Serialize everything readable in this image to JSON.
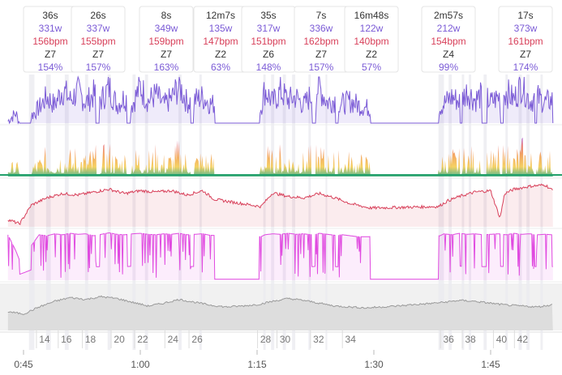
{
  "colors": {
    "power": "#7b5bd6",
    "hr": "#d8405a",
    "cadence": "#e04ae0",
    "altitude": "#9a9a9a",
    "zone_band_low": "#22a06b",
    "zone_band_mid": "#f2c230",
    "zone_band_high": "#e05050"
  },
  "chart_data": {
    "type": "line",
    "x_axis": {
      "ticks": [
        "0:45",
        "1:00",
        "1:15",
        "1:30",
        "1:45"
      ],
      "range_minutes": [
        43,
        113
      ]
    },
    "interval_cards": [
      {
        "duration": "36s",
        "power": "331w",
        "hr": "156bpm",
        "zone": "Z7",
        "percent": "154%",
        "t": 56.0
      },
      {
        "duration": "26s",
        "power": "337w",
        "hr": "155bpm",
        "zone": "Z7",
        "percent": "157%",
        "t": 61.2
      },
      {
        "duration": "8s",
        "power": "349w",
        "hr": "159bpm",
        "zone": "Z7",
        "percent": "163%",
        "t": 68.5
      },
      {
        "duration": "12m7s",
        "power": "135w",
        "hr": "147bpm",
        "zone": "Z2",
        "percent": "63%",
        "t": 73.2
      },
      {
        "duration": "35s",
        "power": "317w",
        "hr": "151bpm",
        "zone": "Z6",
        "percent": "148%",
        "t": 77.6
      },
      {
        "duration": "7s",
        "power": "336w",
        "hr": "162bpm",
        "zone": "Z7",
        "percent": "157%",
        "t": 82.8
      },
      {
        "duration": "16m48s",
        "power": "122w",
        "hr": "140bpm",
        "zone": "Z2",
        "percent": "57%",
        "t": 87.4
      },
      {
        "duration": "2m57s",
        "power": "212w",
        "hr": "154bpm",
        "zone": "Z4",
        "percent": "99%",
        "t": 98.6
      },
      {
        "duration": "17s",
        "power": "373w",
        "hr": "161bpm",
        "zone": "Z7",
        "percent": "174%",
        "t": 108.5
      }
    ],
    "lap_markers": [
      {
        "label": "14",
        "t": 47.7
      },
      {
        "label": "16",
        "t": 50.5
      },
      {
        "label": "18",
        "t": 53.6
      },
      {
        "label": "20",
        "t": 57.3
      },
      {
        "label": "22",
        "t": 60.3
      },
      {
        "label": "24",
        "t": 64.2
      },
      {
        "label": "26",
        "t": 67.3
      },
      {
        "label": "28",
        "t": 76.1
      },
      {
        "label": "30",
        "t": 78.6
      },
      {
        "label": "32",
        "t": 82.9
      },
      {
        "label": "34",
        "t": 87.0
      },
      {
        "label": "36",
        "t": 99.6
      },
      {
        "label": "38",
        "t": 102.4
      },
      {
        "label": "40",
        "t": 106.4
      },
      {
        "label": "42",
        "t": 109.1
      }
    ],
    "active_segments": [
      [
        43.0,
        44.5
      ],
      [
        46.0,
        54.3
      ],
      [
        54.8,
        58.3
      ],
      [
        58.8,
        66.5
      ],
      [
        66.9,
        69.5
      ],
      [
        75.3,
        82.0
      ],
      [
        82.5,
        85.0
      ],
      [
        85.4,
        89.5
      ],
      [
        98.3,
        101.0
      ],
      [
        101.3,
        103.8
      ],
      [
        104.5,
        106.2
      ],
      [
        106.6,
        110.6
      ],
      [
        110.9,
        112.9
      ]
    ],
    "highlight_bands": [
      [
        45.7,
        46.4
      ],
      [
        47.9,
        48.5
      ],
      [
        50.3,
        50.8
      ],
      [
        52.9,
        53.3
      ],
      [
        55.8,
        56.2
      ],
      [
        59.0,
        59.4
      ],
      [
        60.6,
        61.0
      ],
      [
        64.9,
        65.3
      ],
      [
        67.6,
        67.9
      ],
      [
        75.8,
        76.1
      ],
      [
        76.8,
        77.2
      ],
      [
        78.3,
        78.7
      ],
      [
        79.5,
        79.9
      ],
      [
        81.6,
        81.9
      ],
      [
        83.8,
        84.0
      ],
      [
        98.3,
        99.0
      ],
      [
        99.6,
        100.0
      ],
      [
        101.3,
        101.6
      ],
      [
        102.2,
        102.5
      ],
      [
        104.1,
        104.5
      ],
      [
        106.9,
        107.2
      ],
      [
        108.6,
        109.0
      ],
      [
        109.6,
        110.0
      ],
      [
        111.4,
        111.7
      ]
    ],
    "series": [
      {
        "key": "power",
        "points": [
          [
            43.0,
            80
          ],
          [
            44.0,
            140
          ],
          [
            44.5,
            60
          ],
          [
            46.0,
            120
          ],
          [
            47.0,
            180
          ],
          [
            48.0,
            260
          ],
          [
            49.0,
            200
          ],
          [
            50.0,
            320
          ],
          [
            51.0,
            240
          ],
          [
            52.0,
            300
          ],
          [
            53.0,
            220
          ],
          [
            54.0,
            280
          ],
          [
            55.0,
            240
          ],
          [
            56.0,
            331
          ],
          [
            57.0,
            200
          ],
          [
            58.0,
            260
          ],
          [
            59.0,
            210
          ],
          [
            60.0,
            337
          ],
          [
            61.0,
            230
          ],
          [
            62.0,
            280
          ],
          [
            63.0,
            200
          ],
          [
            64.0,
            250
          ],
          [
            65.0,
            349
          ],
          [
            66.0,
            220
          ],
          [
            67.0,
            240
          ],
          [
            68.0,
            260
          ],
          [
            69.0,
            210
          ],
          [
            75.5,
            180
          ],
          [
            76.0,
            317
          ],
          [
            77.0,
            220
          ],
          [
            78.0,
            300
          ],
          [
            79.0,
            240
          ],
          [
            80.0,
            260
          ],
          [
            81.0,
            200
          ],
          [
            82.0,
            280
          ],
          [
            83.0,
            336
          ],
          [
            84.0,
            220
          ],
          [
            85.0,
            240
          ],
          [
            86.0,
            210
          ],
          [
            87.0,
            230
          ],
          [
            88.0,
            200
          ],
          [
            89.0,
            180
          ],
          [
            98.5,
            180
          ],
          [
            99.0,
            212
          ],
          [
            100.0,
            260
          ],
          [
            101.0,
            230
          ],
          [
            102.0,
            300
          ],
          [
            103.0,
            240
          ],
          [
            104.0,
            280
          ],
          [
            105.0,
            220
          ],
          [
            106.0,
            260
          ],
          [
            107.0,
            300
          ],
          [
            108.0,
            240
          ],
          [
            109.0,
            373
          ],
          [
            110.0,
            230
          ],
          [
            111.0,
            260
          ],
          [
            112.0,
            220
          ],
          [
            113.0,
            240
          ]
        ]
      },
      {
        "key": "hr",
        "points": [
          [
            43.0,
            110
          ],
          [
            44.5,
            104
          ],
          [
            46.0,
            130
          ],
          [
            48.0,
            140
          ],
          [
            50.0,
            146
          ],
          [
            52.0,
            144
          ],
          [
            54.0,
            148
          ],
          [
            56.0,
            152
          ],
          [
            58.0,
            146
          ],
          [
            60.0,
            150
          ],
          [
            62.0,
            148
          ],
          [
            64.0,
            150
          ],
          [
            66.0,
            144
          ],
          [
            68.0,
            150
          ],
          [
            69.5,
            138
          ],
          [
            75.5,
            128
          ],
          [
            77.0,
            147
          ],
          [
            79.0,
            142
          ],
          [
            81.0,
            140
          ],
          [
            83.0,
            146
          ],
          [
            85.0,
            140
          ],
          [
            87.0,
            132
          ],
          [
            89.5,
            126
          ],
          [
            98.3,
            128
          ],
          [
            99.5,
            136
          ],
          [
            101.0,
            142
          ],
          [
            103.0,
            148
          ],
          [
            105.0,
            150
          ],
          [
            106.2,
            112
          ],
          [
            106.8,
            146
          ],
          [
            108.0,
            152
          ],
          [
            110.0,
            156
          ],
          [
            112.0,
            158
          ],
          [
            113.0,
            150
          ]
        ]
      },
      {
        "key": "cadence",
        "points": [
          [
            43.0,
            92
          ],
          [
            44.0,
            60
          ],
          [
            44.5,
            40
          ],
          [
            46.0,
            70
          ],
          [
            47.0,
            92
          ],
          [
            48.0,
            90
          ],
          [
            49.0,
            94
          ],
          [
            50.0,
            92
          ],
          [
            51.0,
            95
          ],
          [
            52.0,
            93
          ],
          [
            53.0,
            94
          ],
          [
            54.0,
            90
          ],
          [
            55.0,
            93
          ],
          [
            56.0,
            96
          ],
          [
            57.0,
            93
          ],
          [
            58.0,
            92
          ],
          [
            59.0,
            94
          ],
          [
            60.0,
            95
          ],
          [
            61.0,
            93
          ],
          [
            62.0,
            92
          ],
          [
            63.0,
            94
          ],
          [
            64.0,
            93
          ],
          [
            65.0,
            95
          ],
          [
            66.0,
            92
          ],
          [
            67.0,
            93
          ],
          [
            68.0,
            94
          ],
          [
            69.0,
            91
          ],
          [
            75.5,
            88
          ],
          [
            76.0,
            92
          ],
          [
            77.0,
            94
          ],
          [
            78.0,
            93
          ],
          [
            79.0,
            95
          ],
          [
            80.0,
            93
          ],
          [
            81.0,
            94
          ],
          [
            82.0,
            92
          ],
          [
            83.0,
            95
          ],
          [
            84.0,
            93
          ],
          [
            85.0,
            91
          ],
          [
            86.0,
            92
          ],
          [
            87.0,
            90
          ],
          [
            88.0,
            88
          ],
          [
            98.5,
            90
          ],
          [
            99.0,
            94
          ],
          [
            100.0,
            92
          ],
          [
            101.0,
            95
          ],
          [
            102.0,
            93
          ],
          [
            103.0,
            94
          ],
          [
            104.0,
            92
          ],
          [
            105.0,
            93
          ],
          [
            106.0,
            94
          ],
          [
            107.0,
            92
          ],
          [
            108.0,
            95
          ],
          [
            109.0,
            93
          ],
          [
            110.0,
            94
          ],
          [
            111.0,
            92
          ],
          [
            112.0,
            93
          ],
          [
            113.0,
            92
          ]
        ]
      },
      {
        "key": "altitude",
        "points": [
          [
            43.0,
            40
          ],
          [
            45.0,
            35
          ],
          [
            47.0,
            50
          ],
          [
            49.0,
            62
          ],
          [
            51.0,
            70
          ],
          [
            53.0,
            66
          ],
          [
            55.0,
            72
          ],
          [
            57.0,
            68
          ],
          [
            59.0,
            60
          ],
          [
            61.0,
            52
          ],
          [
            63.0,
            58
          ],
          [
            65.0,
            66
          ],
          [
            67.0,
            60
          ],
          [
            69.0,
            54
          ],
          [
            71.0,
            50
          ],
          [
            73.0,
            52
          ],
          [
            75.0,
            55
          ],
          [
            77.0,
            62
          ],
          [
            79.0,
            68
          ],
          [
            81.0,
            64
          ],
          [
            83.0,
            58
          ],
          [
            85.0,
            52
          ],
          [
            87.0,
            50
          ],
          [
            89.0,
            48
          ],
          [
            91.0,
            50
          ],
          [
            93.0,
            52
          ],
          [
            95.0,
            55
          ],
          [
            97.0,
            57
          ],
          [
            99.0,
            60
          ],
          [
            101.0,
            64
          ],
          [
            103.0,
            62
          ],
          [
            105.0,
            58
          ],
          [
            107.0,
            54
          ],
          [
            109.0,
            52
          ],
          [
            111.0,
            50
          ],
          [
            113.0,
            55
          ]
        ]
      }
    ]
  }
}
